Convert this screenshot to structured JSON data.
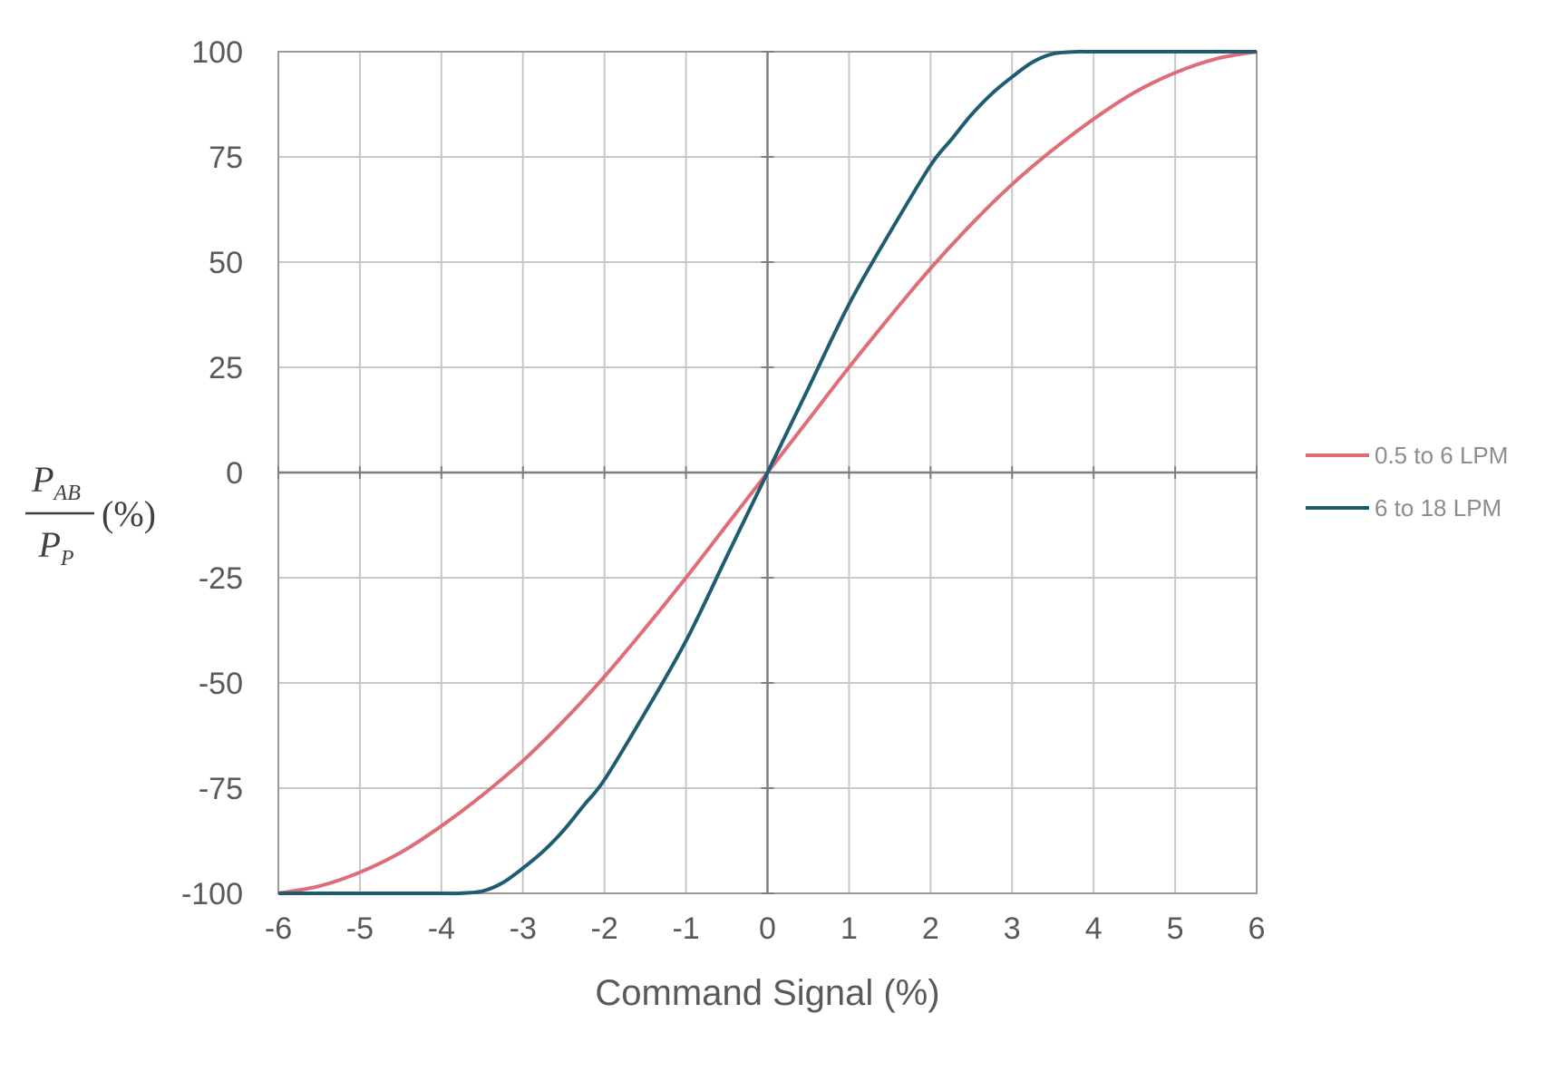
{
  "chart_data": {
    "type": "line",
    "title": "",
    "xlabel": "Command Signal (%)",
    "ylabel": {
      "numerator": "P",
      "numerator_sub": "AB",
      "denominator": "P",
      "denominator_sub": "P",
      "unit": "(%)"
    },
    "xlim": [
      -6,
      6
    ],
    "ylim": [
      -100,
      100
    ],
    "x_ticks": [
      "-6",
      "-5",
      "-4",
      "-3",
      "-2",
      "-1",
      "0",
      "1",
      "2",
      "3",
      "4",
      "5",
      "6"
    ],
    "y_ticks": [
      "100",
      "75",
      "50",
      "25",
      "0",
      "-25",
      "-50",
      "-75",
      "-100"
    ],
    "grid": true,
    "legend_position": "right",
    "series": [
      {
        "name": "0.5 to 6 LPM",
        "color": "#e06c78",
        "x": [
          -6,
          -5.5,
          -5,
          -4.5,
          -4,
          -3.5,
          -3,
          -2.5,
          -2,
          -1.5,
          -1,
          -0.5,
          0,
          0.5,
          1,
          1.5,
          2,
          2.5,
          3,
          3.5,
          4,
          4.5,
          5,
          5.5,
          6
        ],
        "y": [
          -100,
          -98.3,
          -95,
          -90.3,
          -84,
          -76.7,
          -68.5,
          -59,
          -48.5,
          -37,
          -25,
          -12.5,
          0,
          12.5,
          25,
          37,
          48.5,
          59,
          68.5,
          76.7,
          84,
          90.3,
          95,
          98.3,
          100
        ]
      },
      {
        "name": "6 to 18 LPM",
        "color": "#1f5c72",
        "x": [
          -6,
          -5,
          -4,
          -3.8,
          -3.5,
          -3.25,
          -3,
          -2.75,
          -2.5,
          -2.25,
          -2,
          -1.5,
          -1,
          -0.5,
          0,
          0.5,
          1,
          1.5,
          2,
          2.25,
          2.5,
          2.75,
          3,
          3.25,
          3.5,
          3.8,
          4,
          5,
          6
        ],
        "y": [
          -100,
          -100,
          -100,
          -100,
          -99.5,
          -97.5,
          -94,
          -90,
          -85,
          -79,
          -73,
          -57,
          -40,
          -20,
          0,
          20,
          40,
          57,
          73,
          79,
          85,
          90,
          94,
          97.5,
          99.5,
          100,
          100,
          100,
          100
        ]
      }
    ]
  }
}
